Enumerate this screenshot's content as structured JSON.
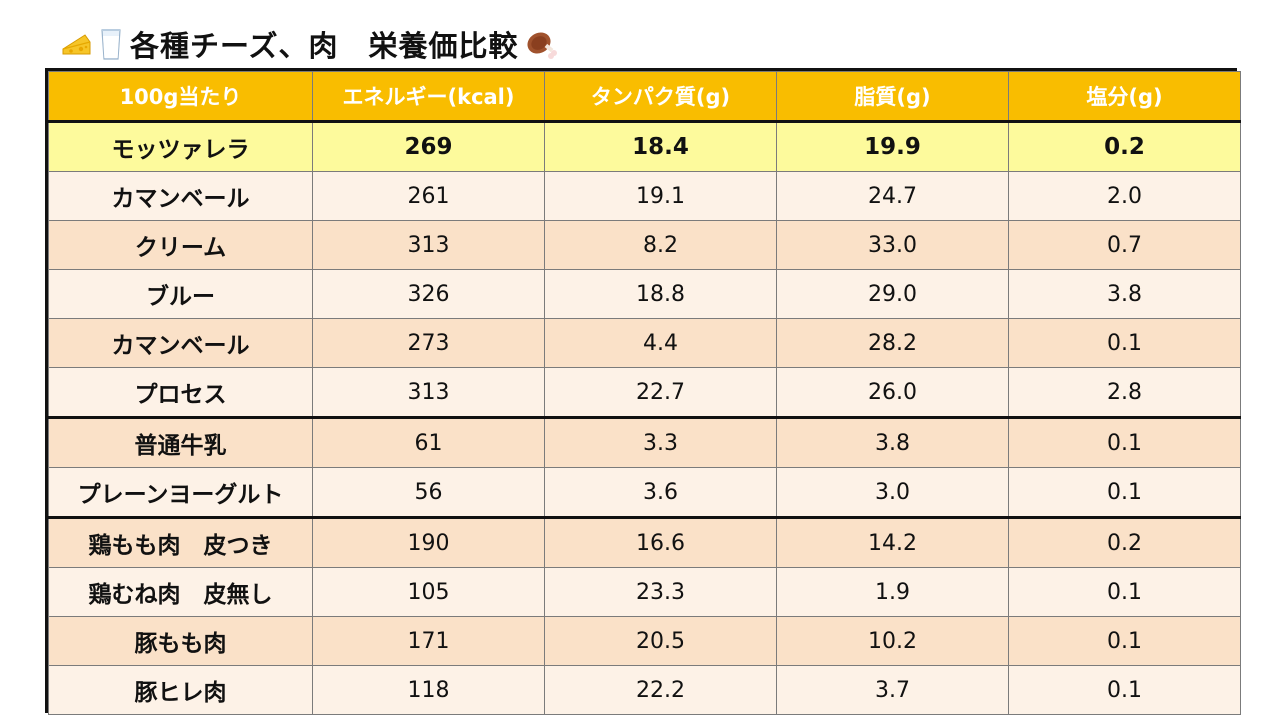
{
  "title": {
    "text": "各種チーズ、肉　栄養価比較",
    "left_icons": [
      "cheese-icon",
      "milk-icon"
    ],
    "right_icon": "meat-icon"
  },
  "colors": {
    "header_bg": "#f9bd00",
    "highlight_row": "#fdfa9c",
    "row_light": "#fdf2e7",
    "row_dark": "#fae1c8"
  },
  "chart_data": {
    "type": "table",
    "columns": [
      "100g当たり",
      "エネルギー(kcal)",
      "タンパク質(g)",
      "脂質(g)",
      "塩分(g)"
    ],
    "rows": [
      {
        "name": "モッツァレラ",
        "values": [
          "269",
          "18.4",
          "19.9",
          "0.2"
        ],
        "style": "highlight"
      },
      {
        "name": "カマンベール",
        "values": [
          "261",
          "19.1",
          "24.7",
          "2.0"
        ],
        "style": "light"
      },
      {
        "name": "クリーム",
        "values": [
          "313",
          "8.2",
          "33.0",
          "0.7"
        ],
        "style": "dark"
      },
      {
        "name": "ブルー",
        "values": [
          "326",
          "18.8",
          "29.0",
          "3.8"
        ],
        "style": "light"
      },
      {
        "name": "カマンベール",
        "values": [
          "273",
          "4.4",
          "28.2",
          "0.1"
        ],
        "style": "dark"
      },
      {
        "name": "プロセス",
        "values": [
          "313",
          "22.7",
          "26.0",
          "2.8"
        ],
        "style": "light"
      },
      {
        "name": "普通牛乳",
        "values": [
          "61",
          "3.3",
          "3.8",
          "0.1"
        ],
        "style": "dark",
        "group_start": true
      },
      {
        "name": "プレーンヨーグルト",
        "values": [
          "56",
          "3.6",
          "3.0",
          "0.1"
        ],
        "style": "light"
      },
      {
        "name": "鶏もも肉　皮つき",
        "values": [
          "190",
          "16.6",
          "14.2",
          "0.2"
        ],
        "style": "dark",
        "group_start": true
      },
      {
        "name": "鶏むね肉　皮無し",
        "values": [
          "105",
          "23.3",
          "1.9",
          "0.1"
        ],
        "style": "light"
      },
      {
        "name": "豚もも肉",
        "values": [
          "171",
          "20.5",
          "10.2",
          "0.1"
        ],
        "style": "dark"
      },
      {
        "name": "豚ヒレ肉",
        "values": [
          "118",
          "22.2",
          "3.7",
          "0.1"
        ],
        "style": "light"
      }
    ]
  }
}
